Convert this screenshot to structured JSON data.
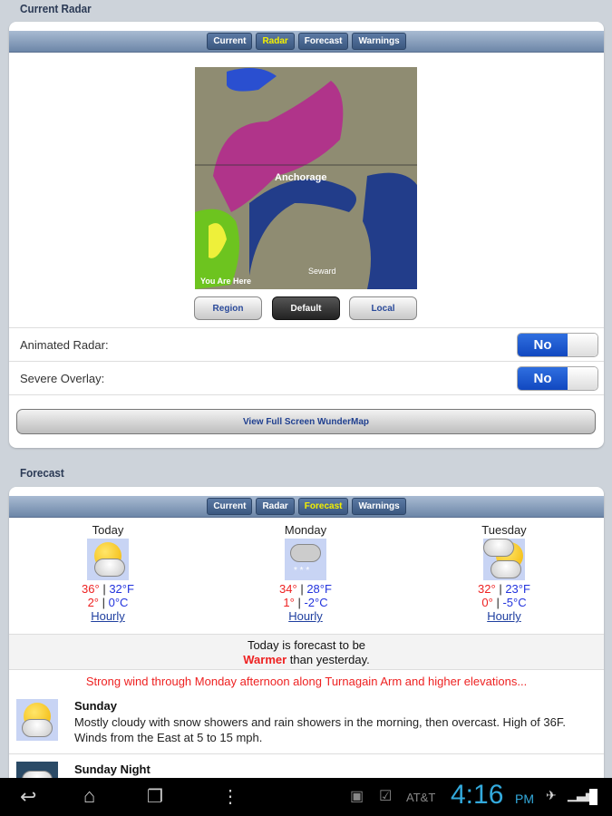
{
  "radar": {
    "section_title": "Current Radar",
    "tabs": [
      "Current",
      "Radar",
      "Forecast",
      "Warnings"
    ],
    "active_tab": "Radar",
    "map_labels": {
      "city": "Anchorage",
      "seward": "Seward",
      "you_are_here": "You Are Here"
    },
    "view_buttons": [
      "Region",
      "Default",
      "Local"
    ],
    "selected_view": "Default",
    "animated_label": "Animated Radar:",
    "animated_value": "No",
    "severe_label": "Severe Overlay:",
    "severe_value": "No",
    "fullscreen_label": "View Full Screen WunderMap"
  },
  "forecast": {
    "section_title": "Forecast",
    "tabs": [
      "Current",
      "Radar",
      "Forecast",
      "Warnings"
    ],
    "active_tab": "Forecast",
    "days": [
      {
        "name": "Today",
        "icon": "partly-cloudy-icon",
        "hi_f": "36°",
        "lo_f": "32°F",
        "hi_c": "2°",
        "lo_c": "0°C",
        "link": "Hourly"
      },
      {
        "name": "Monday",
        "icon": "snow-rain-icon",
        "hi_f": "34°",
        "lo_f": "28°F",
        "hi_c": "1°",
        "lo_c": "-2°C",
        "link": "Hourly"
      },
      {
        "name": "Tuesday",
        "icon": "mostly-cloudy-icon",
        "hi_f": "32°",
        "lo_f": "23°F",
        "hi_c": "0°",
        "lo_c": "-5°C",
        "link": "Hourly"
      }
    ],
    "compare_pre": "Today is forecast to be",
    "compare_word": "Warmer",
    "compare_post": " than yesterday.",
    "alert": "Strong wind through Monday afternoon along Turnagain Arm and higher elevations...",
    "periods": [
      {
        "title": "Sunday",
        "text": "Mostly cloudy with snow showers and rain showers in the morning, then overcast. High of 36F. Winds from the East at 5 to 15 mph."
      },
      {
        "title": "Sunday Night",
        "text": ""
      }
    ]
  },
  "status": {
    "carrier": "AT&T",
    "time": "4:16",
    "ampm": "PM"
  },
  "colors": {
    "accent": "#1148c0",
    "alert": "#e22222",
    "time": "#33aadd"
  }
}
